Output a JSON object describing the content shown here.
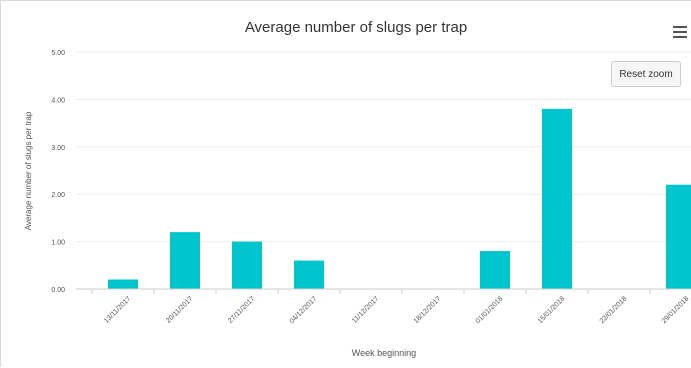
{
  "chart_data": {
    "type": "bar",
    "title": "Average number of slugs per trap",
    "xlabel": "Week beginning",
    "ylabel": "Average number of slugs per trap",
    "categories": [
      "13/11/2017",
      "20/11/2017",
      "27/11/2017",
      "04/12/2017",
      "11/12/2017",
      "18/12/2017",
      "01/01/2018",
      "15/01/2018",
      "22/01/2018",
      "29/01/2018"
    ],
    "values": [
      0.2,
      1.2,
      1.0,
      0.6,
      0,
      0,
      0.8,
      3.8,
      0,
      2.2
    ],
    "ylim": [
      0,
      5
    ],
    "yticks": [
      "0.00",
      "1.00",
      "2.00",
      "3.00",
      "4.00",
      "5.00"
    ],
    "grid": true,
    "legend": "none",
    "bar_color": "#00c5cd"
  },
  "toolbar": {
    "reset_zoom_label": "Reset zoom",
    "menu_icon": "hamburger-menu-icon"
  }
}
